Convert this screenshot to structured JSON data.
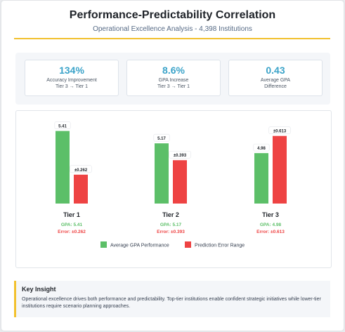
{
  "header": {
    "title": "Performance-Predictability Correlation",
    "subtitle": "Operational Excellence Analysis - 4,398 Institutions"
  },
  "metrics": [
    {
      "value": "134%",
      "label_line1": "Accuracy Improvement",
      "label_line2": "Tier 3 → Tier 1"
    },
    {
      "value": "8.6%",
      "label_line1": "GPA Increase",
      "label_line2": "Tier 3 → Tier 1"
    },
    {
      "value": "0.43",
      "label_line1": "Average GPA",
      "label_line2": "Difference"
    }
  ],
  "colors": {
    "gpa": "#5cbf68",
    "error": "#ee4343",
    "accent": "#f2c12e",
    "metric_value": "#3ba3c9"
  },
  "chart_data": {
    "type": "bar",
    "categories": [
      "Tier 1",
      "Tier 2",
      "Tier 3"
    ],
    "series": [
      {
        "name": "Average GPA Performance",
        "values": [
          5.41,
          5.17,
          4.98
        ],
        "labels": [
          "5.41",
          "5.17",
          "4.98"
        ]
      },
      {
        "name": "Prediction Error Range",
        "values": [
          0.262,
          0.393,
          0.613
        ],
        "labels": [
          "±0.262",
          "±0.393",
          "±0.613"
        ]
      }
    ],
    "gpa_caption": [
      "GPA: 5.41",
      "GPA: 5.17",
      "GPA: 4.98"
    ],
    "error_caption": [
      "Error: ±0.262",
      "Error: ±0.393",
      "Error: ±0.613"
    ],
    "scale_note": "GPA bars scaled 4.0–5.5; error bars scaled 0–0.7",
    "gpa_range": [
      4.0,
      5.5
    ],
    "error_range": [
      0,
      0.7
    ],
    "legend_position": "bottom-center"
  },
  "insight": {
    "title": "Key Insight",
    "text": "Operational excellence drives both performance and predictability. Top-tier institutions enable confident strategic initiatives while lower-tier institutions require scenario planning approaches."
  }
}
